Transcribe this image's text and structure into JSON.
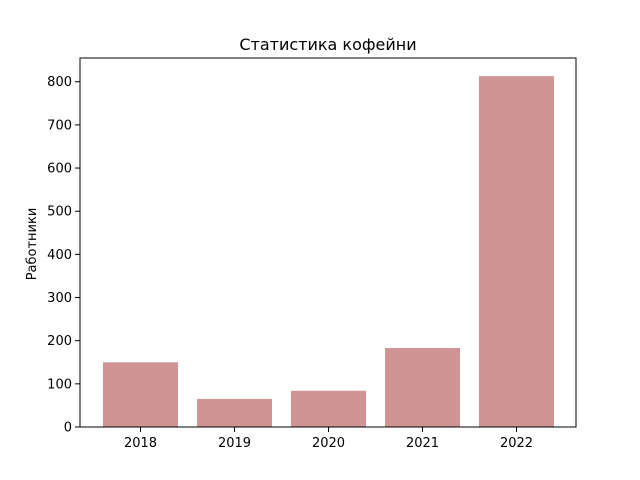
{
  "chart_data": {
    "type": "bar",
    "title": "Статистика кофейни",
    "xlabel": "",
    "ylabel": "Работники",
    "categories": [
      "2018",
      "2019",
      "2020",
      "2021",
      "2022"
    ],
    "values": [
      150,
      65,
      84,
      183,
      813
    ],
    "ylim": [
      0,
      855
    ],
    "yticks": [
      0,
      100,
      200,
      300,
      400,
      500,
      600,
      700,
      800
    ],
    "bar_color": "#d09494",
    "grid": false,
    "legend": "none"
  }
}
